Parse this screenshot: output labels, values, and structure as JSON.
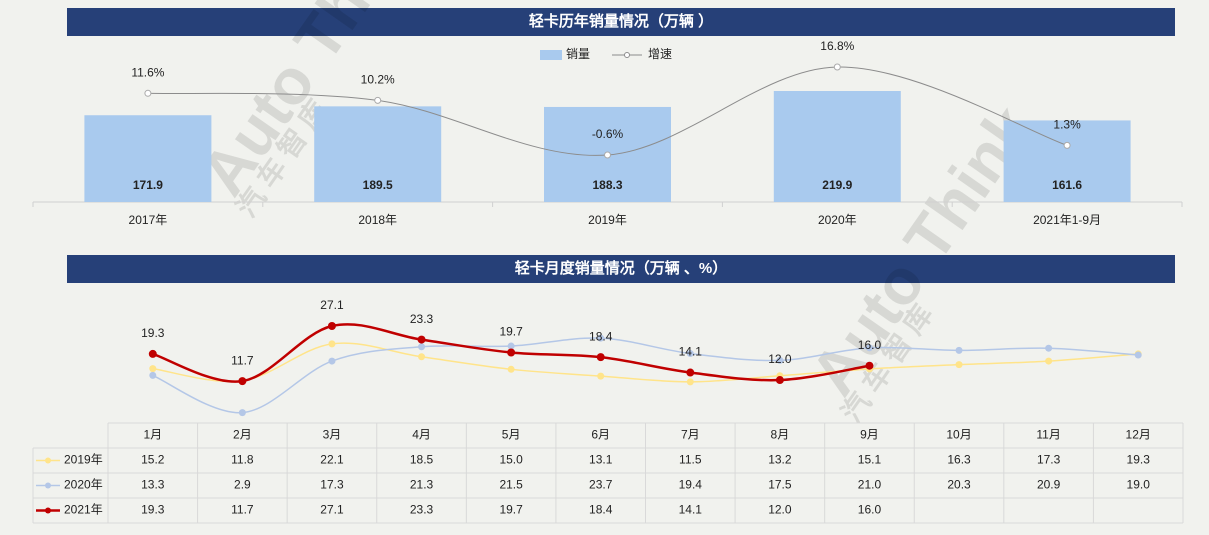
{
  "watermark": "Auto Think",
  "watermark_sub": "汽 车 智 库",
  "chart_data": [
    {
      "type": "bar",
      "title": "轻卡历年销量情况（万辆 ）",
      "categories": [
        "2017年",
        "2018年",
        "2019年",
        "2020年",
        "2021年1-9月"
      ],
      "series": [
        {
          "name": "销量",
          "color": "#a9caee",
          "values": [
            171.9,
            189.5,
            188.3,
            219.9,
            161.6
          ]
        },
        {
          "name": "增速",
          "color": "#8c8c8c",
          "type": "line",
          "axis": "y2",
          "values": [
            11.6,
            10.2,
            -0.6,
            16.8,
            1.3
          ],
          "value_labels": [
            "11.6%",
            "10.2%",
            "-0.6%",
            "16.8%",
            "1.3%"
          ]
        }
      ]
    },
    {
      "type": "line",
      "title": "轻卡月度销量情况（万辆 、%）",
      "categories": [
        "1月",
        "2月",
        "3月",
        "4月",
        "5月",
        "6月",
        "7月",
        "8月",
        "9月",
        "10月",
        "11月",
        "12月"
      ],
      "series": [
        {
          "name": "2019年",
          "color": "#ffe48a",
          "values": [
            15.2,
            11.8,
            22.1,
            18.5,
            15.0,
            13.1,
            11.5,
            13.2,
            15.1,
            16.3,
            17.3,
            19.3
          ],
          "value_labels": [
            "15.2",
            "11.8",
            "22.1",
            "18.5",
            "15.0",
            "13.1",
            "11.5",
            "13.2",
            "15.1",
            "16.3",
            "17.3",
            "19.3"
          ]
        },
        {
          "name": "2020年",
          "color": "#b4c7e7",
          "values": [
            13.3,
            2.9,
            17.3,
            21.3,
            21.5,
            23.7,
            19.4,
            17.5,
            21.0,
            20.3,
            20.9,
            19.0
          ],
          "value_labels": [
            "13.3",
            "2.9",
            "17.3",
            "21.3",
            "21.5",
            "23.7",
            "19.4",
            "17.5",
            "21.0",
            "20.3",
            "20.9",
            "19.0"
          ]
        },
        {
          "name": "2021年",
          "color": "#c00000",
          "data_labels": true,
          "values": [
            19.3,
            11.7,
            27.1,
            23.3,
            19.7,
            18.4,
            14.1,
            12.0,
            16.0,
            null,
            null,
            null
          ],
          "value_labels": [
            "19.3",
            "11.7",
            "27.1",
            "23.3",
            "19.7",
            "18.4",
            "14.1",
            "12.0",
            "16.0",
            null,
            null,
            null
          ]
        }
      ]
    }
  ]
}
